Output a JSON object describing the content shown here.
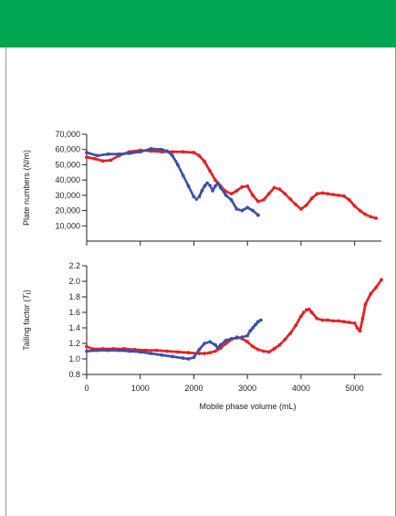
{
  "colors": {
    "header": "#00a651",
    "series_red": "#e41e26",
    "series_blue": "#3a4ea8"
  },
  "chart_data": [
    {
      "type": "scatter",
      "xlabel": "",
      "ylabel_prefix": "Plate numbers (",
      "ylabel_italic": "N",
      "ylabel_suffix": "/m)",
      "xlim": [
        0,
        5500
      ],
      "ylim": [
        0,
        70000
      ],
      "xticks": [
        0,
        1000,
        2000,
        3000,
        4000,
        5000
      ],
      "yticks": [
        10000,
        20000,
        30000,
        40000,
        50000,
        60000,
        70000
      ],
      "ytick_labels": [
        "10,000",
        "20,000",
        "30,000",
        "40,000",
        "50,000",
        "60,000",
        "70,000"
      ],
      "grid": false,
      "series": [
        {
          "color": "#e41e26",
          "x": [
            0,
            150,
            300,
            450,
            600,
            800,
            1000,
            1200,
            1400,
            1600,
            1800,
            2000,
            2100,
            2200,
            2300,
            2400,
            2500,
            2600,
            2700,
            2800,
            2900,
            3000,
            3100,
            3200,
            3300,
            3400,
            3500,
            3600,
            3700,
            3800,
            3900,
            4000,
            4100,
            4200,
            4300,
            4400,
            4500,
            4600,
            4700,
            4800,
            4900,
            5000,
            5100,
            5200,
            5300,
            5400
          ],
          "y": [
            55000,
            54000,
            52500,
            53000,
            56000,
            58500,
            59500,
            59000,
            58500,
            58500,
            58500,
            58000,
            56000,
            52000,
            46000,
            40000,
            36000,
            32500,
            31000,
            33000,
            35500,
            36000,
            30000,
            26000,
            27000,
            31000,
            35000,
            34000,
            31000,
            27500,
            24000,
            21000,
            23500,
            28000,
            31000,
            31500,
            31000,
            30500,
            30000,
            29500,
            27000,
            23000,
            20000,
            17500,
            16000,
            15000
          ]
        },
        {
          "color": "#3a4ea8",
          "x": [
            0,
            200,
            400,
            600,
            800,
            1000,
            1200,
            1400,
            1500,
            1600,
            1700,
            1800,
            1900,
            2000,
            2050,
            2100,
            2150,
            2200,
            2250,
            2300,
            2350,
            2400,
            2450,
            2500,
            2600,
            2700,
            2800,
            2900,
            3000,
            3100,
            3200
          ],
          "y": [
            58000,
            56000,
            57000,
            57000,
            57500,
            58500,
            60500,
            60000,
            59000,
            56000,
            50000,
            43000,
            36000,
            29000,
            27500,
            29000,
            33000,
            36000,
            38000,
            36500,
            33000,
            36000,
            38000,
            35000,
            30000,
            27000,
            21000,
            20000,
            22000,
            20000,
            17000
          ]
        }
      ]
    },
    {
      "type": "scatter",
      "xlabel": "Mobile phase volume (mL)",
      "ylabel_prefix": "Tailing factor (",
      "ylabel_italic": "T",
      "ylabel_sub": "f",
      "ylabel_suffix": ")",
      "xlim": [
        0,
        5500
      ],
      "ylim": [
        0.8,
        2.2
      ],
      "xticks": [
        0,
        1000,
        2000,
        3000,
        4000,
        5000
      ],
      "xtick_labels": [
        "0",
        "1000",
        "2000",
        "3000",
        "4000",
        "5000"
      ],
      "yticks": [
        0.8,
        1.0,
        1.2,
        1.4,
        1.6,
        1.8,
        2.0,
        2.2
      ],
      "ytick_labels": [
        "0.8",
        "1.0",
        "1.2",
        "1.4",
        "1.6",
        "1.8",
        "2.0",
        "2.2"
      ],
      "grid": false,
      "series": [
        {
          "color": "#e41e26",
          "x": [
            0,
            100,
            300,
            500,
            700,
            900,
            1100,
            1300,
            1500,
            1700,
            1900,
            2100,
            2200,
            2300,
            2400,
            2500,
            2600,
            2700,
            2800,
            2900,
            3000,
            3100,
            3200,
            3300,
            3400,
            3500,
            3600,
            3700,
            3800,
            3900,
            4000,
            4050,
            4100,
            4150,
            4200,
            4300,
            4400,
            4500,
            4600,
            4700,
            4800,
            4900,
            5000,
            5050,
            5100,
            5150,
            5200,
            5300,
            5400,
            5500
          ],
          "y": [
            1.16,
            1.13,
            1.13,
            1.13,
            1.13,
            1.12,
            1.11,
            1.11,
            1.1,
            1.09,
            1.08,
            1.07,
            1.07,
            1.08,
            1.1,
            1.14,
            1.2,
            1.25,
            1.28,
            1.26,
            1.22,
            1.16,
            1.12,
            1.1,
            1.09,
            1.13,
            1.18,
            1.25,
            1.33,
            1.43,
            1.55,
            1.6,
            1.63,
            1.64,
            1.6,
            1.52,
            1.5,
            1.5,
            1.49,
            1.49,
            1.48,
            1.47,
            1.46,
            1.4,
            1.36,
            1.52,
            1.7,
            1.84,
            1.92,
            2.02
          ]
        },
        {
          "color": "#3a4ea8",
          "x": [
            0,
            200,
            400,
            600,
            800,
            1000,
            1200,
            1400,
            1600,
            1800,
            1900,
            2000,
            2100,
            2200,
            2300,
            2400,
            2450,
            2500,
            2600,
            2700,
            2800,
            2900,
            3000,
            3050,
            3100,
            3150,
            3200,
            3250
          ],
          "y": [
            1.1,
            1.11,
            1.11,
            1.11,
            1.1,
            1.09,
            1.07,
            1.05,
            1.03,
            1.01,
            1.0,
            1.02,
            1.12,
            1.2,
            1.22,
            1.18,
            1.14,
            1.18,
            1.24,
            1.26,
            1.27,
            1.28,
            1.3,
            1.36,
            1.4,
            1.44,
            1.48,
            1.5
          ]
        }
      ]
    }
  ]
}
